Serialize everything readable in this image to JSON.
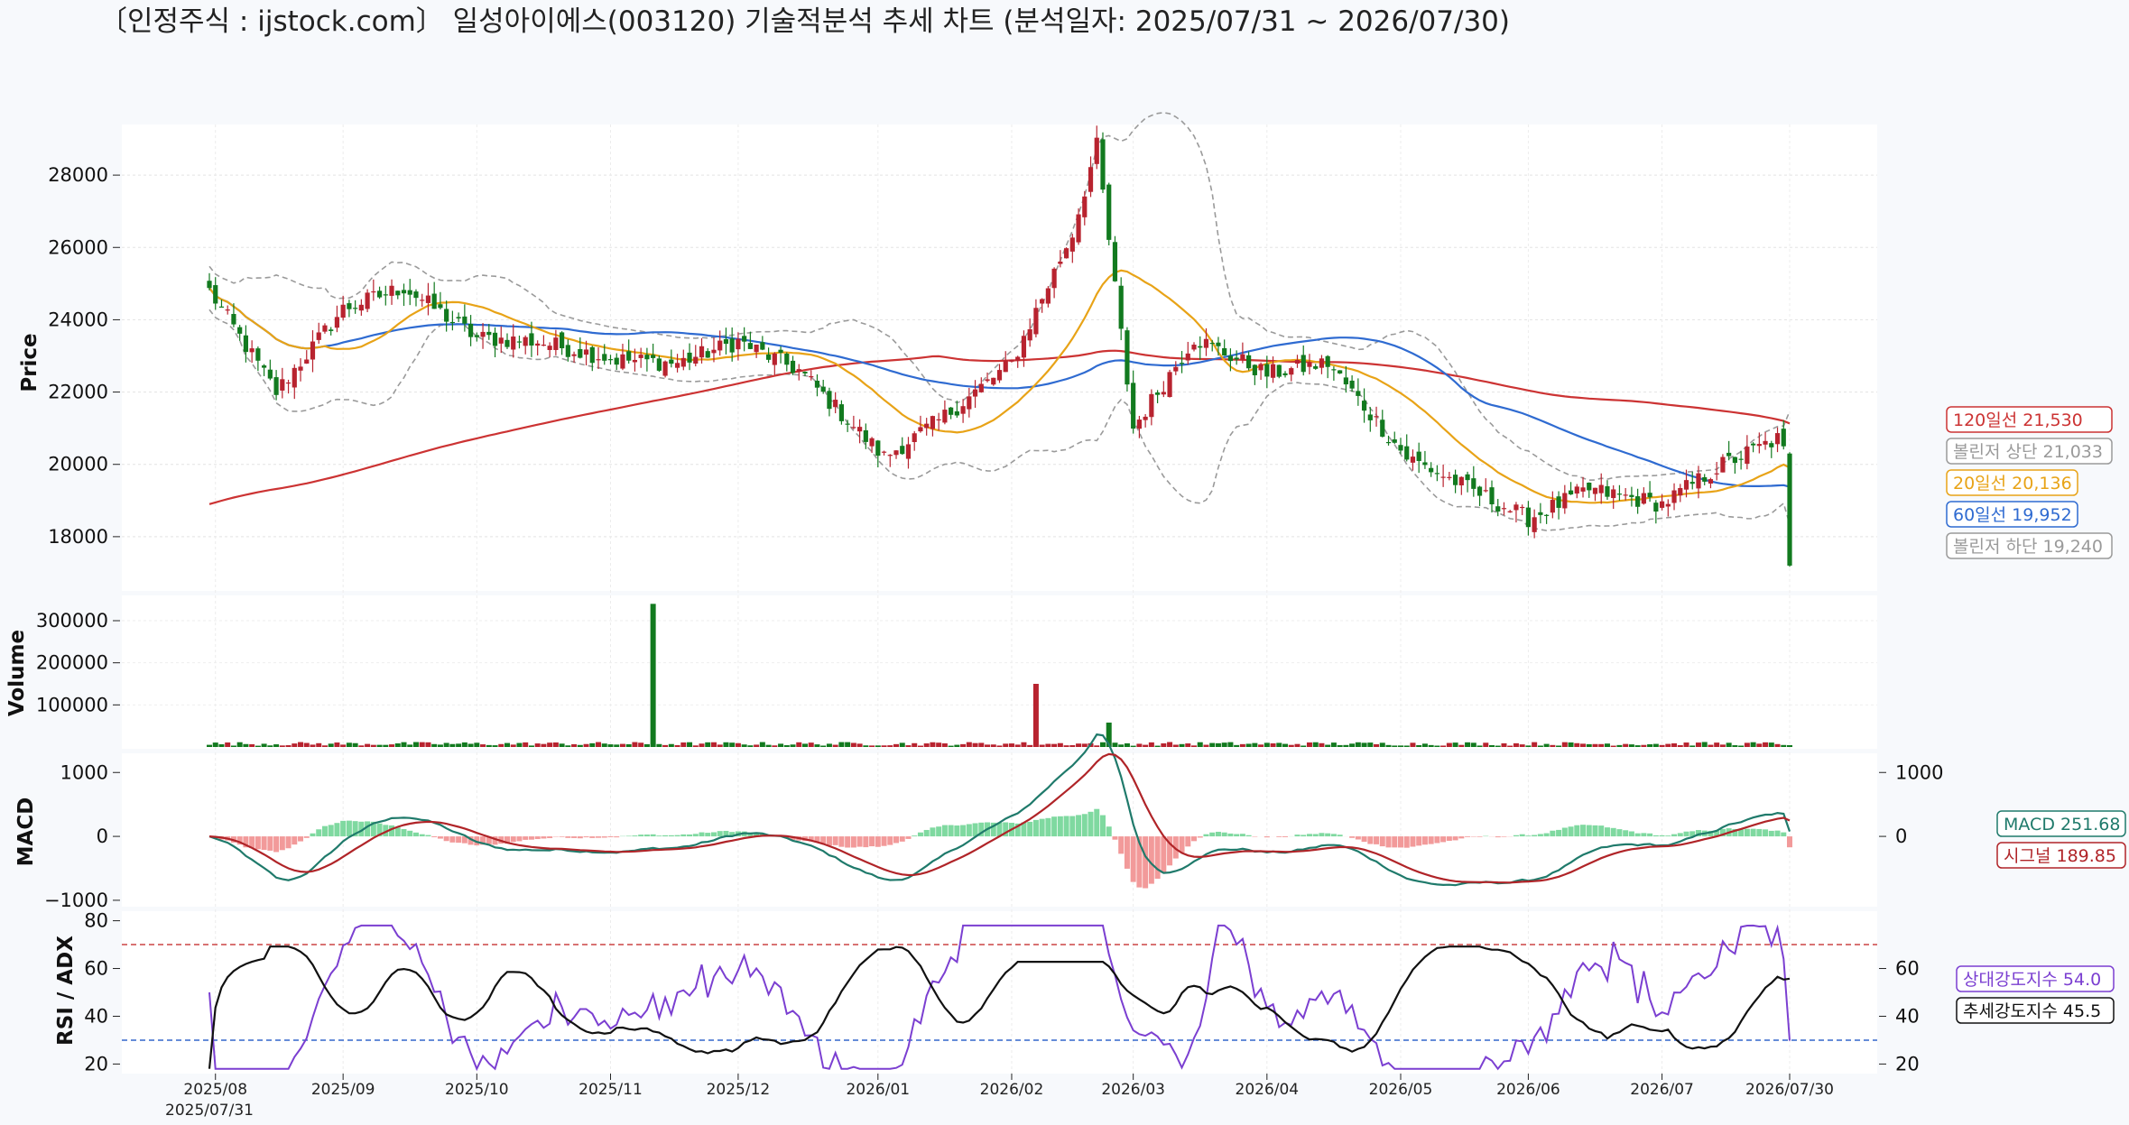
{
  "title": "〔인정주식 : ijstock.com〕 일성아이에스(003120) 기술적분석 추세 차트 (분석일자: 2025/07/31 ~ 2026/07/30)",
  "colors": {
    "up": "#b8232f",
    "down": "#127a1f",
    "ma20": "#e8a317",
    "ma60": "#2f6bd1",
    "ma120": "#cc3333",
    "bb": "#9a9a9a",
    "macd": "#1f7a6b",
    "signal": "#b02428",
    "hist_pos": "#7fd9a0",
    "hist_neg": "#f29a9a",
    "rsi": "#7b3fd1",
    "adx": "#111111",
    "rsi70": "#cc4444",
    "rsi30": "#3366cc"
  },
  "chart_data": [
    {
      "panel": "price",
      "type": "candlestick",
      "ylabel": "Price",
      "yticks": [
        18000,
        20000,
        22000,
        24000,
        26000,
        28000
      ],
      "ylim": [
        16500,
        29400
      ],
      "dates": "2025/07/31 – 2026/07/30 (daily)",
      "ohlc_anchors": [
        {
          "date": "2025/07/31",
          "close": 24800
        },
        {
          "date": "2025/08/15",
          "close": 22000
        },
        {
          "date": "2025/09/01",
          "close": 24300
        },
        {
          "date": "2025/09/15",
          "close": 24900
        },
        {
          "date": "2025/10/01",
          "close": 23500
        },
        {
          "date": "2025/10/15",
          "close": 23400
        },
        {
          "date": "2025/11/03",
          "close": 22900
        },
        {
          "date": "2025/11/17",
          "close": 22800
        },
        {
          "date": "2025/12/01",
          "close": 23400
        },
        {
          "date": "2025/12/15",
          "close": 22600
        },
        {
          "date": "2026/01/02",
          "close": 20200
        },
        {
          "date": "2026/01/15",
          "close": 21200
        },
        {
          "date": "2026/02/02",
          "close": 22800
        },
        {
          "date": "2026/02/16",
          "close": 26400
        },
        {
          "date": "2026/02/20",
          "close": 28800
        },
        {
          "date": "2026/03/02",
          "close": 21000
        },
        {
          "date": "2026/03/16",
          "close": 23500
        },
        {
          "date": "2026/04/01",
          "close": 22500
        },
        {
          "date": "2026/04/15",
          "close": 22800
        },
        {
          "date": "2026/05/04",
          "close": 20200
        },
        {
          "date": "2026/06/01",
          "close": 18500
        },
        {
          "date": "2026/06/15",
          "close": 19300
        },
        {
          "date": "2026/07/01",
          "close": 18900
        },
        {
          "date": "2026/07/15",
          "close": 20000
        },
        {
          "date": "2026/07/28",
          "close": 20700
        },
        {
          "date": "2026/07/30",
          "close": 17200
        }
      ],
      "series": [
        {
          "name": "120일선",
          "last": 21530
        },
        {
          "name": "볼린저 상단",
          "last": 21033
        },
        {
          "name": "20일선",
          "last": 20136
        },
        {
          "name": "60일선",
          "last": 19952
        },
        {
          "name": "볼린저 하단",
          "last": 19240
        }
      ]
    },
    {
      "panel": "volume",
      "type": "bar",
      "ylabel": "Volume",
      "yticks": [
        100000,
        200000,
        300000
      ],
      "spikes": [
        {
          "date": "2025/11/11",
          "value": 340000
        },
        {
          "date": "2026/02/06",
          "value": 150000
        },
        {
          "date": "2026/02/24",
          "value": 58000
        }
      ]
    },
    {
      "panel": "macd",
      "type": "line+bar",
      "ylabel": "MACD",
      "yticks_left": [
        -1000,
        0,
        1000
      ],
      "yticks_right": [
        0,
        1000
      ],
      "series": [
        {
          "name": "MACD",
          "last": 251.68
        },
        {
          "name": "시그널",
          "last": 189.85
        }
      ]
    },
    {
      "panel": "rsi_adx",
      "type": "line",
      "ylabel": "RSI / ADX",
      "yticks_left": [
        20,
        40,
        60,
        80
      ],
      "yticks_right": [
        20,
        40,
        60
      ],
      "hlines": [
        70,
        30
      ],
      "series": [
        {
          "name": "상대강도지수",
          "last": 54.0
        },
        {
          "name": "추세강도지수",
          "last": 45.5
        }
      ]
    }
  ],
  "xaxis": {
    "ticks": [
      "2025/08",
      "2025/09",
      "2025/10",
      "2025/11",
      "2025/12",
      "2026/01",
      "2026/02",
      "2026/03",
      "2026/04",
      "2026/05",
      "2026/06",
      "2026/07",
      "2026/07/30"
    ],
    "start_label": "2025/07/31"
  },
  "legend": {
    "ma120": "120일선 21,530",
    "bb_upper": "볼린저 상단 21,033",
    "ma20": "20일선 20,136",
    "ma60": "60일선 19,952",
    "bb_lower": "볼린저 하단 19,240",
    "macd": "MACD 251.68",
    "signal": "시그널 189.85",
    "rsi": "상대강도지수 54.0",
    "adx": "추세강도지수 45.5"
  }
}
